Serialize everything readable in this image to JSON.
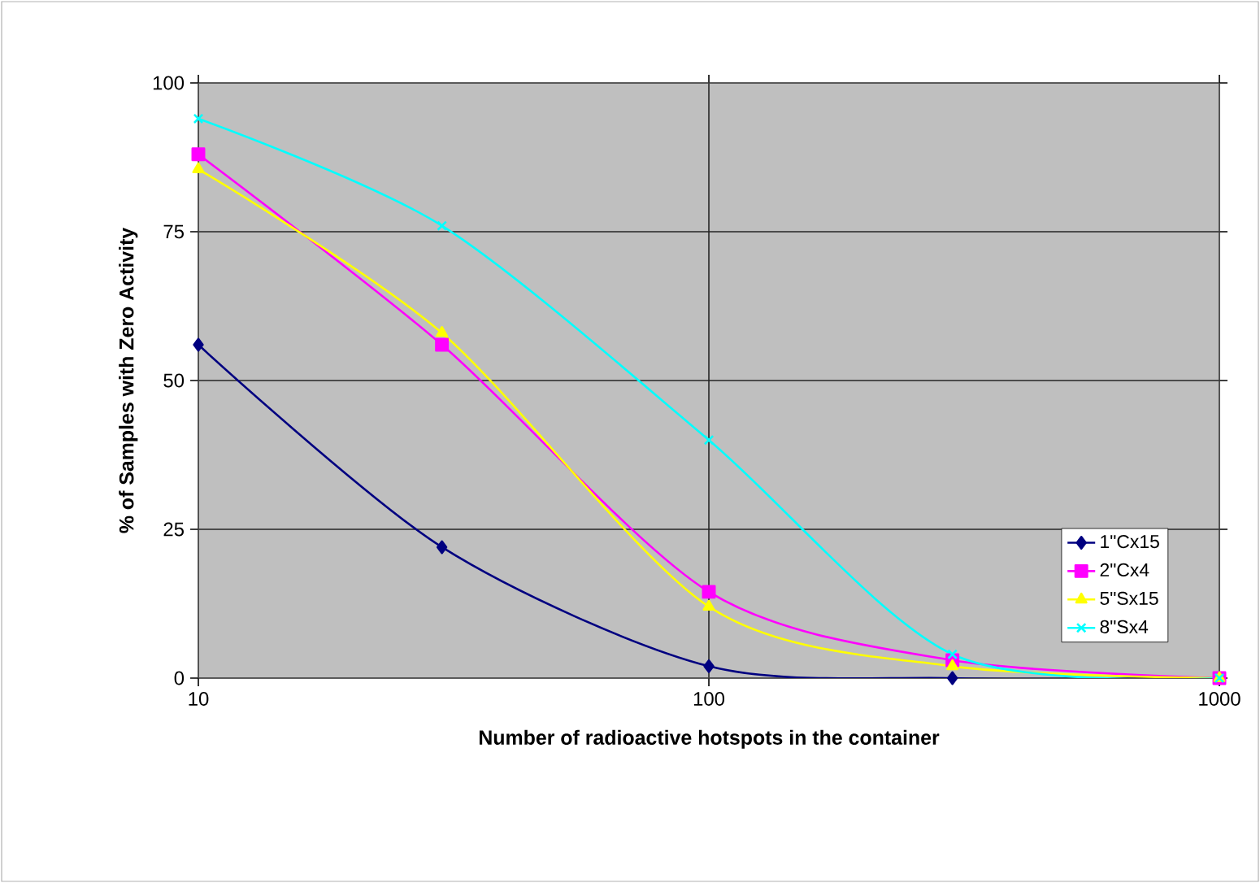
{
  "chart_data": {
    "type": "line",
    "xlabel": "Number of radioactive hotspots in the container",
    "ylabel": "% of Samples with Zero Activity",
    "x": [
      10,
      30,
      100,
      300,
      1000
    ],
    "log": "x",
    "xlim": [
      10,
      1000
    ],
    "xticks": [
      10,
      100,
      1000
    ],
    "ylim": [
      0,
      100
    ],
    "yticks": [
      0,
      25,
      50,
      75,
      100
    ],
    "grid": true,
    "legend": "right",
    "line_style": "solid",
    "series": [
      {
        "name": "1\"Cx15",
        "color": "#000080",
        "marker": "diamond",
        "values": [
          56,
          22,
          2,
          0,
          0
        ]
      },
      {
        "name": "2\"Cx4",
        "color": "#ff00ff",
        "marker": "square",
        "values": [
          88,
          56,
          14.5,
          3,
          0
        ]
      },
      {
        "name": "5\"Sx15",
        "color": "#ffff00",
        "marker": "triangle",
        "values": [
          85.5,
          58,
          12,
          2,
          0
        ]
      },
      {
        "name": "8\"Sx4",
        "color": "#00ffff",
        "marker": "cross",
        "values": [
          94,
          76,
          40,
          4,
          0
        ]
      }
    ]
  }
}
